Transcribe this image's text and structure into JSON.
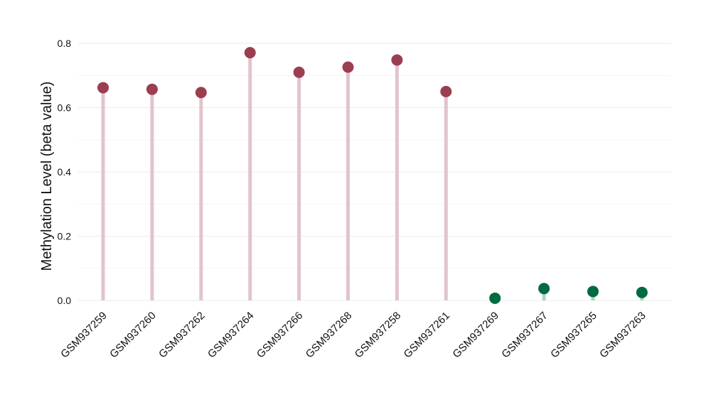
{
  "chart_data": {
    "type": "scatter",
    "style": "lollipop",
    "title": "",
    "xlabel": "",
    "ylabel": "Methylation Level (beta value)",
    "ylim": [
      0,
      0.8
    ],
    "yticks": [
      0.0,
      0.2,
      0.4,
      0.6,
      0.8
    ],
    "ytick_labels": [
      "0.0",
      "0.2",
      "0.4",
      "0.6",
      "0.8"
    ],
    "grid": true,
    "categories": [
      "GSM937259",
      "GSM937260",
      "GSM937262",
      "GSM937264",
      "GSM937266",
      "GSM937268",
      "GSM937258",
      "GSM937261",
      "GSM937269",
      "GSM937267",
      "GSM937265",
      "GSM937263"
    ],
    "values": [
      0.662,
      0.657,
      0.647,
      0.771,
      0.71,
      0.726,
      0.748,
      0.65,
      0.007,
      0.037,
      0.028,
      0.025
    ],
    "groups": [
      "high",
      "high",
      "high",
      "high",
      "high",
      "high",
      "high",
      "high",
      "low",
      "low",
      "low",
      "low"
    ],
    "colors": {
      "high_point": "#9b3e50",
      "high_stem": "#e2c4cc",
      "low_point": "#006a40",
      "low_stem": "#b3d3c5",
      "grid": "#ebebeb"
    }
  }
}
